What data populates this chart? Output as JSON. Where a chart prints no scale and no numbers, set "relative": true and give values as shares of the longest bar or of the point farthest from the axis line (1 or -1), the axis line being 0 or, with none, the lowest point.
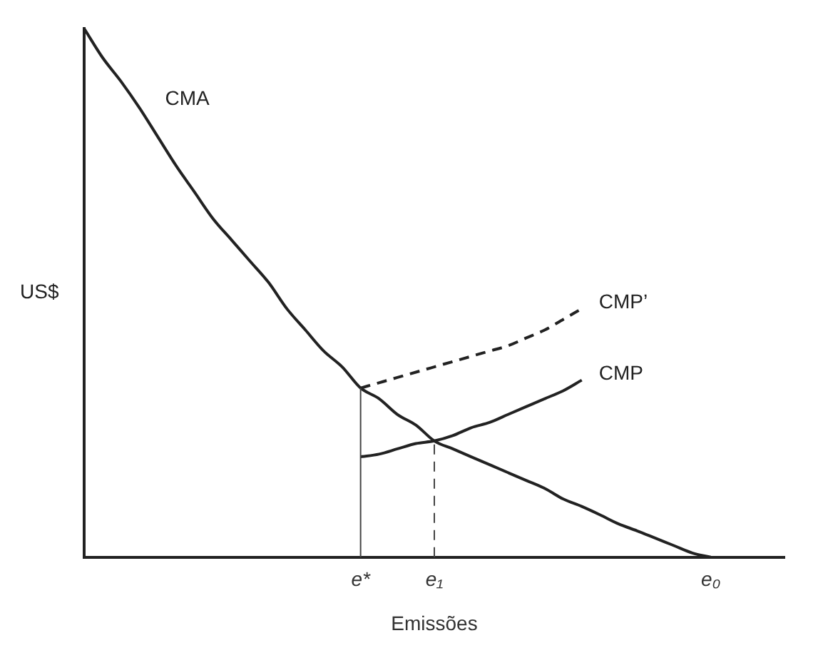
{
  "chart_data": {
    "type": "line",
    "relative": true,
    "xlabel": "Emissões",
    "ylabel": "US$",
    "categories": [
      null,
      null,
      null,
      null,
      null,
      null,
      null,
      null,
      null,
      null,
      null,
      null,
      null,
      null,
      null,
      "e*",
      null,
      null,
      null,
      "e₁",
      null,
      null,
      null,
      null,
      null,
      null,
      null,
      null,
      null,
      null,
      null,
      null,
      null,
      null,
      "e₀",
      null,
      null,
      null,
      null
    ],
    "series": [
      {
        "name": "CMA",
        "color": "#222222",
        "line_style": "solid",
        "values": [
          1,
          0.945,
          0.9,
          0.85,
          0.795,
          0.74,
          0.69,
          0.64,
          0.6,
          0.56,
          0.52,
          0.47,
          0.43,
          0.39,
          0.36,
          0.32,
          0.3,
          0.27,
          0.25,
          0.22,
          0.205,
          0.19,
          0.175,
          0.16,
          0.145,
          0.13,
          0.11,
          0.096,
          0.08,
          0.063,
          0.05,
          0.036,
          0.022,
          0.008,
          0,
          null,
          null,
          null,
          null
        ]
      },
      {
        "name": "CMP",
        "color": "#222222",
        "line_style": "solid",
        "values": [
          null,
          null,
          null,
          null,
          null,
          null,
          null,
          null,
          null,
          null,
          null,
          null,
          null,
          null,
          null,
          0.19,
          0.195,
          0.205,
          0.215,
          0.22,
          0.23,
          0.245,
          0.255,
          0.27,
          0.285,
          0.3,
          0.315,
          0.335,
          null,
          null,
          null,
          null,
          null,
          null,
          null,
          null,
          null,
          null,
          null
        ]
      },
      {
        "name": "CMP’",
        "color": "#222222",
        "line_style": "dashed",
        "values": [
          null,
          null,
          null,
          null,
          null,
          null,
          null,
          null,
          null,
          null,
          null,
          null,
          null,
          null,
          null,
          0.32,
          0.33,
          0.34,
          0.35,
          0.36,
          0.37,
          0.38,
          0.39,
          0.4,
          0.415,
          0.43,
          0.45,
          0.47,
          null,
          null,
          null,
          null,
          null,
          null,
          null,
          null,
          null,
          null,
          null
        ]
      }
    ],
    "ref_lines": [
      {
        "axis": "x",
        "value": "e*",
        "line_style": "solid",
        "color": "#444444"
      },
      {
        "axis": "x",
        "value": "e₁",
        "line_style": "dashed",
        "color": "#444444"
      }
    ],
    "tick_labels": "x",
    "grid": false,
    "legend": false,
    "marker": "none"
  }
}
